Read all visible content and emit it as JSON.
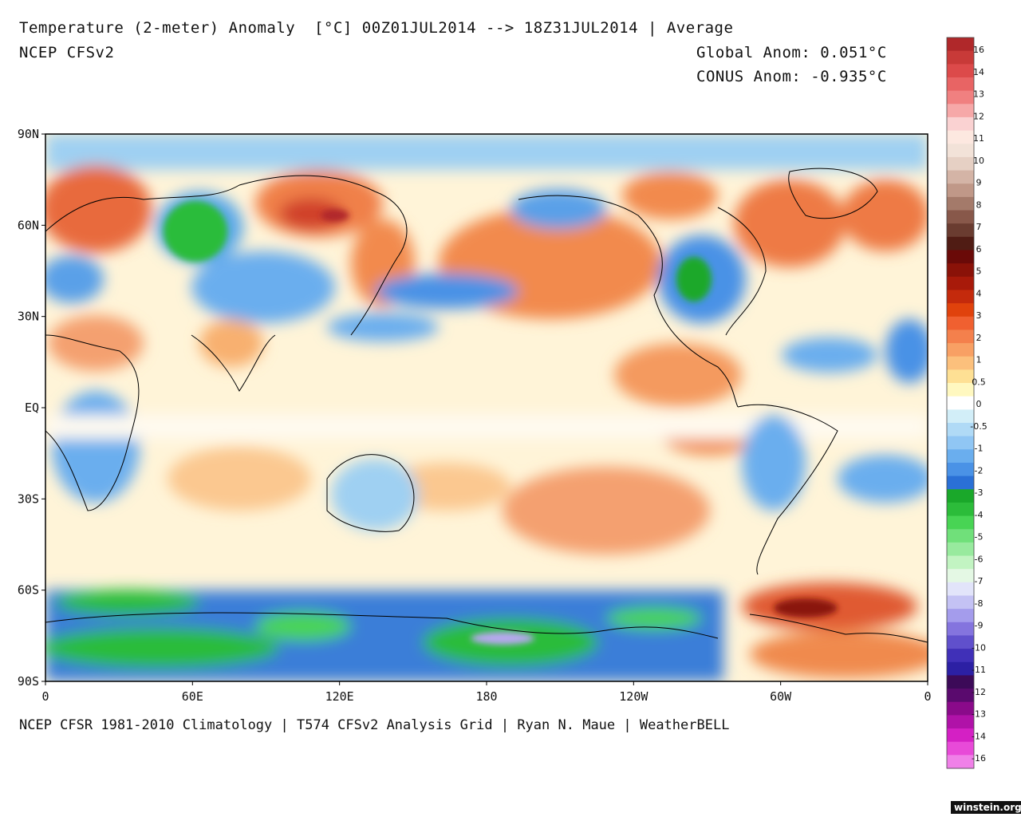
{
  "header": {
    "title": "Temperature (2-meter) Anomaly  [°C] 00Z01JUL2014 --> 18Z31JUL2014 | Average",
    "model": "NCEP CFSv2",
    "global_anom": "Global Anom: 0.051°C",
    "conus_anom": "CONUS Anom: -0.935°C"
  },
  "footer": "NCEP CFSR 1981-2010 Climatology | T574 CFSv2 Analysis Grid | Ryan N. Maue | WeatherBELL",
  "watermark": "winstein.org",
  "map": {
    "lat_labels": [
      "90N",
      "60N",
      "30N",
      "EQ",
      "30S",
      "60S",
      "90S"
    ],
    "lon_labels": [
      "0",
      "60E",
      "120E",
      "180",
      "120W",
      "60W",
      "0"
    ]
  },
  "colorbar": {
    "colors": [
      "#b0282a",
      "#c83a38",
      "#dc4a4a",
      "#e86464",
      "#f08080",
      "#f6a8a8",
      "#fad2d2",
      "#fde8e0",
      "#f2e2d8",
      "#e6d0c4",
      "#d4b4a6",
      "#c09888",
      "#a47a6a",
      "#88584a",
      "#6a3c30",
      "#501c14",
      "#6a0a08",
      "#8a1208",
      "#a81a0a",
      "#c42a0c",
      "#e0420c",
      "#f06030",
      "#f4804c",
      "#f8a064",
      "#fcc07c",
      "#fee094",
      "#fff8c0",
      "#ffffff",
      "#d2eef8",
      "#b0daf6",
      "#90c6f4",
      "#6aaeee",
      "#4a92e6",
      "#2a70d6",
      "#1aa82a",
      "#2cbc3a",
      "#48d454",
      "#70e07a",
      "#98ea9e",
      "#c2f4c2",
      "#e4f8e4",
      "#e2e4fa",
      "#c4c2f4",
      "#a49cec",
      "#8474de",
      "#6050cc",
      "#4030b8",
      "#2c20a4",
      "#3c0a58",
      "#5a0a6e",
      "#8a0a8a",
      "#b012a8",
      "#d420c4",
      "#e84ad8",
      "#f080e8"
    ],
    "labels": [
      "16",
      "14",
      "13",
      "12",
      "11",
      "10",
      "9",
      "8",
      "7",
      "6",
      "5",
      "4",
      "3",
      "2",
      "1",
      "0.5",
      "0",
      "-0.5",
      "-1",
      "-2",
      "-3",
      "-4",
      "-5",
      "-6",
      "-7",
      "-8",
      "-9",
      "-10",
      "-11",
      "-12",
      "-13",
      "-14",
      "-16"
    ]
  },
  "colors": {
    "warm": "#f28a4e",
    "warm_light": "#fddc9a",
    "cool": "#4e8fe0",
    "cold": "#2cbc3a",
    "very_cold": "#b8a8f0",
    "neutral": "#ffffff",
    "coastline": "#000000"
  }
}
